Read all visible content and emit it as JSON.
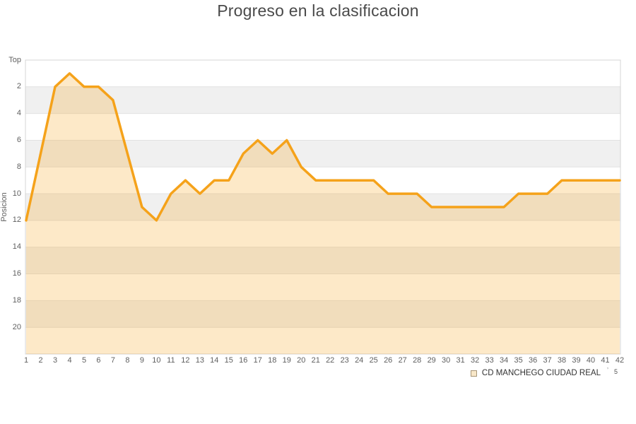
{
  "chart_data": {
    "type": "area",
    "title": "Progreso en la clasificacion",
    "ylabel": "Posicion",
    "y_axis_reversed": true,
    "ylim": [
      0,
      22
    ],
    "grid": true,
    "legend_position": "bottom-right",
    "yticks": [
      {
        "label": "Top",
        "value": 0
      },
      {
        "label": "2",
        "value": 2
      },
      {
        "label": "4",
        "value": 4
      },
      {
        "label": "6",
        "value": 6
      },
      {
        "label": "8",
        "value": 8
      },
      {
        "label": "10",
        "value": 10
      },
      {
        "label": "12",
        "value": 12
      },
      {
        "label": "14",
        "value": 14
      },
      {
        "label": "16",
        "value": 16
      },
      {
        "label": "18",
        "value": 18
      },
      {
        "label": "20",
        "value": 20
      }
    ],
    "band_pairs": [
      [
        2,
        4
      ],
      [
        6,
        8
      ],
      [
        10,
        12
      ],
      [
        14,
        16
      ],
      [
        18,
        20
      ]
    ],
    "x_labels": [
      "1",
      "2",
      "3",
      "4",
      "5",
      "6",
      "7",
      "8",
      "9",
      "10",
      "11",
      "12",
      "13",
      "14",
      "15",
      "16",
      "17",
      "18",
      "19",
      "20",
      "21",
      "22",
      "23",
      "24",
      "25",
      "26",
      "27",
      "28",
      "29",
      "30",
      "31",
      "32",
      "33",
      "34",
      "35",
      "36",
      "37",
      "38",
      "39",
      "40",
      "41",
      "42"
    ],
    "series": [
      {
        "name": "CD MANCHEGO CIUDAD REAL",
        "x": [
          1,
          2,
          3,
          4,
          5,
          6,
          7,
          8,
          9,
          10,
          11,
          12,
          13,
          14,
          15,
          16,
          17,
          18,
          19,
          20,
          21,
          22,
          23,
          24,
          25,
          26,
          27,
          28,
          29,
          30,
          31,
          32,
          33,
          34,
          35,
          36,
          37,
          38,
          39,
          40,
          41,
          42
        ],
        "values": [
          12,
          7,
          2,
          1,
          2,
          2,
          3,
          7,
          11,
          12,
          10,
          9,
          10,
          9,
          9,
          7,
          6,
          7,
          6,
          8,
          9,
          9,
          9,
          9,
          9,
          10,
          10,
          10,
          11,
          11,
          11,
          11,
          11,
          11,
          10,
          10,
          10,
          9,
          9,
          9,
          9,
          9
        ]
      }
    ],
    "legend": {
      "label": "CD MANCHEGO CIUDAD REAL",
      "note_prefix": "ʼ",
      "note": "5"
    },
    "colors": {
      "line": "#f5a21a",
      "fill": "#f5a21a",
      "fill_opacity": 0.24,
      "band": "#f0f0f0",
      "grid": "#e2e2e2",
      "plot_border": "#d4d4d4",
      "legend_swatch_fill": "#f8e7c8",
      "legend_swatch_border": "#a79678"
    }
  }
}
